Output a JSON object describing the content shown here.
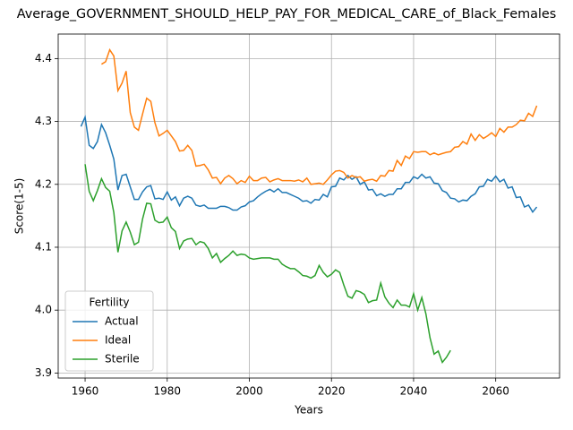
{
  "chart_data": {
    "type": "line",
    "title": "Average_GOVERNMENT_SHOULD_HELP_PAY_FOR_MEDICAL_CARE_of_Black_Females",
    "xlabel": "Years",
    "ylabel": "Score(1-5)",
    "legend_title": "Fertility",
    "legend_loc": "lower left",
    "grid": true,
    "x": [
      1959,
      1960,
      1961,
      1962,
      1963,
      1964,
      1965,
      1966,
      1967,
      1968,
      1969,
      1970,
      1971,
      1972,
      1973,
      1974,
      1975,
      1976,
      1977,
      1978,
      1979,
      1980,
      1981,
      1982,
      1983,
      1984,
      1985,
      1986,
      1987,
      1988,
      1989,
      1990,
      1991,
      1992,
      1993,
      1994,
      1995,
      1996,
      1997,
      1998,
      1999,
      2000,
      2001,
      2002,
      2003,
      2004,
      2005,
      2006,
      2007,
      2008,
      2009,
      2010,
      2011,
      2012,
      2013,
      2014,
      2015,
      2016,
      2017,
      2018,
      2019,
      2020,
      2021,
      2022,
      2023,
      2024,
      2025,
      2026,
      2027,
      2028,
      2029,
      2030,
      2031,
      2032,
      2033,
      2034,
      2035,
      2036,
      2037,
      2038,
      2039,
      2040,
      2041,
      2042,
      2043,
      2044,
      2045,
      2046,
      2047,
      2048,
      2049,
      2050,
      2051,
      2052,
      2053,
      2054,
      2055,
      2056,
      2057,
      2058,
      2059,
      2060,
      2061,
      2062,
      2063,
      2064,
      2065,
      2066,
      2067,
      2068,
      2069,
      2070
    ],
    "series": [
      {
        "name": "Actual",
        "color": "#1f77b4",
        "values": [
          4.292,
          4.307,
          4.262,
          4.257,
          4.268,
          4.295,
          4.282,
          4.262,
          4.24,
          4.191,
          4.214,
          4.216,
          4.196,
          4.176,
          4.176,
          4.188,
          4.196,
          4.198,
          4.177,
          4.178,
          4.176,
          4.188,
          4.175,
          4.18,
          4.166,
          4.178,
          4.181,
          4.178,
          4.167,
          4.165,
          4.167,
          4.162,
          4.162,
          4.162,
          4.165,
          4.165,
          4.163,
          4.159,
          4.159,
          4.164,
          4.166,
          4.172,
          4.174,
          4.18,
          4.185,
          4.189,
          4.192,
          4.188,
          4.193,
          4.187,
          4.187,
          4.184,
          4.181,
          4.178,
          4.173,
          4.174,
          4.17,
          4.176,
          4.175,
          4.184,
          4.18,
          4.196,
          4.197,
          4.21,
          4.207,
          4.214,
          4.208,
          4.212,
          4.2,
          4.204,
          4.191,
          4.192,
          4.182,
          4.185,
          4.181,
          4.184,
          4.184,
          4.193,
          4.193,
          4.203,
          4.203,
          4.212,
          4.209,
          4.216,
          4.21,
          4.212,
          4.202,
          4.201,
          4.19,
          4.187,
          4.178,
          4.177,
          4.172,
          4.175,
          4.174,
          4.181,
          4.185,
          4.196,
          4.197,
          4.208,
          4.205,
          4.213,
          4.204,
          4.208,
          4.194,
          4.196,
          4.179,
          4.18,
          4.164,
          4.167,
          4.156,
          4.164
        ]
      },
      {
        "name": "Ideal",
        "color": "#ff7f0e",
        "values": [
          null,
          null,
          null,
          null,
          null,
          4.391,
          4.395,
          4.414,
          4.404,
          4.349,
          4.361,
          4.38,
          4.314,
          4.291,
          4.286,
          4.312,
          4.337,
          4.332,
          4.298,
          4.277,
          4.281,
          4.286,
          4.277,
          4.268,
          4.253,
          4.254,
          4.262,
          4.254,
          4.229,
          4.23,
          4.232,
          4.223,
          4.21,
          4.211,
          4.201,
          4.21,
          4.214,
          4.209,
          4.201,
          4.206,
          4.203,
          4.213,
          4.206,
          4.206,
          4.21,
          4.211,
          4.204,
          4.207,
          4.209,
          4.206,
          4.206,
          4.206,
          4.205,
          4.207,
          4.204,
          4.21,
          4.2,
          4.201,
          4.202,
          4.2,
          4.207,
          4.215,
          4.221,
          4.222,
          4.219,
          4.21,
          4.214,
          4.211,
          4.212,
          4.205,
          4.207,
          4.208,
          4.205,
          4.214,
          4.213,
          4.222,
          4.221,
          4.238,
          4.23,
          4.245,
          4.241,
          4.252,
          4.251,
          4.252,
          4.252,
          4.247,
          4.25,
          4.247,
          4.249,
          4.251,
          4.252,
          4.259,
          4.26,
          4.268,
          4.264,
          4.28,
          4.27,
          4.279,
          4.273,
          4.277,
          4.282,
          4.276,
          4.289,
          4.283,
          4.291,
          4.291,
          4.295,
          4.302,
          4.301,
          4.313,
          4.308,
          4.325
        ]
      },
      {
        "name": "Sterile",
        "color": "#2ca02c",
        "values": [
          null,
          4.232,
          4.189,
          4.174,
          4.19,
          4.209,
          4.195,
          4.189,
          4.155,
          4.092,
          4.126,
          4.14,
          4.124,
          4.104,
          4.108,
          4.145,
          4.17,
          4.169,
          4.143,
          4.139,
          4.14,
          4.148,
          4.131,
          4.125,
          4.098,
          4.11,
          4.113,
          4.114,
          4.104,
          4.109,
          4.107,
          4.098,
          4.083,
          4.09,
          4.076,
          4.082,
          4.087,
          4.094,
          4.087,
          4.089,
          4.088,
          4.083,
          4.081,
          4.082,
          4.083,
          4.083,
          4.083,
          4.081,
          4.081,
          4.073,
          4.069,
          4.066,
          4.066,
          4.061,
          4.055,
          4.054,
          4.051,
          4.055,
          4.071,
          4.06,
          4.053,
          4.057,
          4.064,
          4.06,
          4.04,
          4.022,
          4.019,
          4.031,
          4.029,
          4.025,
          4.012,
          4.015,
          4.016,
          4.043,
          4.021,
          4.011,
          4.004,
          4.016,
          4.008,
          4.008,
          4.005,
          4.026,
          4.0,
          4.02,
          3.994,
          3.956,
          3.93,
          3.935,
          3.917,
          3.925,
          3.936,
          null,
          null,
          null,
          null,
          null,
          null,
          null,
          null,
          null,
          null,
          null,
          null,
          null,
          null,
          null,
          null,
          null,
          null,
          null,
          null,
          null
        ]
      }
    ],
    "xlim": [
      1953.45,
      2075.55
    ],
    "xticks": [
      1960,
      1980,
      2000,
      2020,
      2040,
      2060
    ],
    "ylim": [
      3.892,
      4.439
    ],
    "yticks": [
      3.9,
      {
        "value": 4,
        "label": "4.0"
      },
      4.1,
      4.2,
      4.3,
      4.4
    ]
  }
}
